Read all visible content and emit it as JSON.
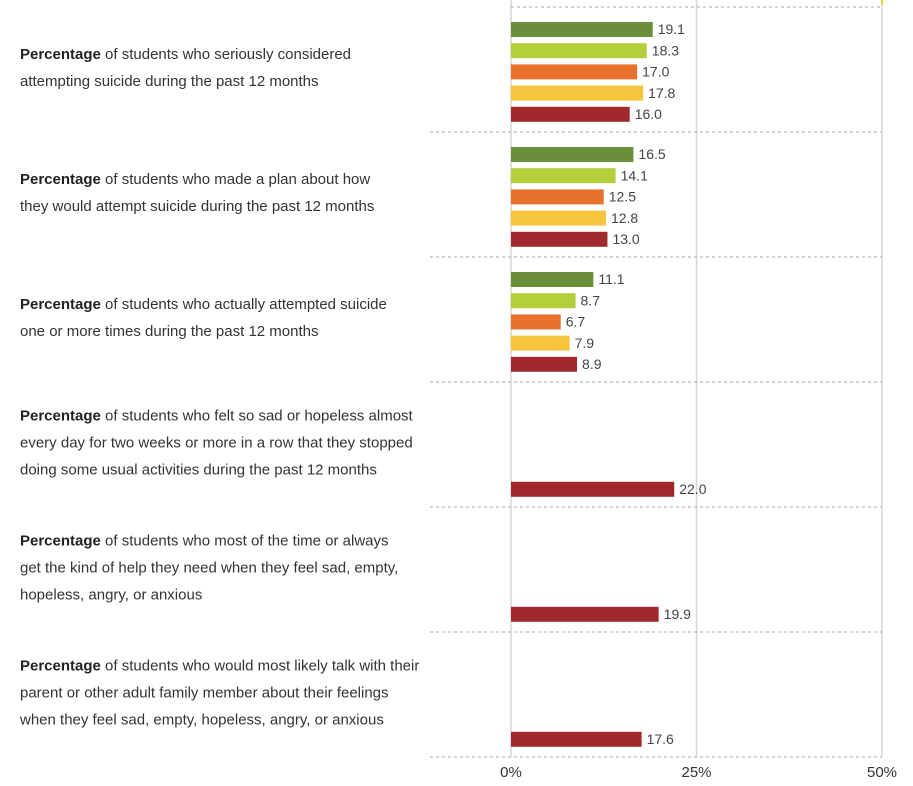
{
  "chart_data": {
    "type": "bar",
    "orientation": "horizontal",
    "categories": [
      "Percentage of students who seriously considered\nattempting suicide during the past 12 months",
      "Percentage of students who made a plan about how\nthey would attempt suicide during the past 12 months",
      "Percentage of students who actually attempted suicide\none or more times during the past 12 months",
      "Percentage of students who felt so sad or hopeless almost\nevery day for two weeks or more in a row that they stopped\ndoing some usual activities during the past 12 months",
      "Percentage of students who most of the time or always\nget the kind of help they need when they feel sad, empty,\nhopeless, angry, or anxious",
      "Percentage of students who would most likely talk with their\nparent or other adult family member about their feelings\nwhen they feel sad, empty, hopeless, angry, or anxious"
    ],
    "series": [
      {
        "color": "#6b8e3a",
        "values": [
          19.1,
          16.5,
          11.1,
          null,
          null,
          null
        ],
        "value_labels": [
          "19.1",
          "16.5",
          "11.1",
          null,
          null,
          null
        ]
      },
      {
        "color": "#b3cf3b",
        "values": [
          18.3,
          14.1,
          8.7,
          null,
          null,
          null
        ],
        "value_labels": [
          "18.3",
          "14.1",
          "8.7",
          null,
          null,
          null
        ]
      },
      {
        "color": "#e8722c",
        "values": [
          17.0,
          12.5,
          6.7,
          null,
          null,
          null
        ],
        "value_labels": [
          "17.0",
          "12.5",
          "6.7",
          null,
          null,
          null
        ]
      },
      {
        "color": "#f7c63e",
        "values": [
          17.8,
          12.8,
          7.9,
          null,
          null,
          null
        ],
        "value_labels": [
          "17.8",
          "12.8",
          "7.9",
          null,
          null,
          null
        ]
      },
      {
        "color": "#a1292e",
        "values": [
          16.0,
          13.0,
          8.9,
          22.0,
          19.9,
          17.6
        ],
        "value_labels": [
          "16.0",
          "13.0",
          "8.9",
          "22.0",
          "19.9",
          "17.6"
        ]
      }
    ],
    "xlim": [
      0,
      50
    ],
    "xticks": [
      {
        "value": 0,
        "label": "0%"
      },
      {
        "value": 25,
        "label": "25%"
      },
      {
        "value": 50,
        "label": "50%"
      }
    ],
    "grid": true
  }
}
